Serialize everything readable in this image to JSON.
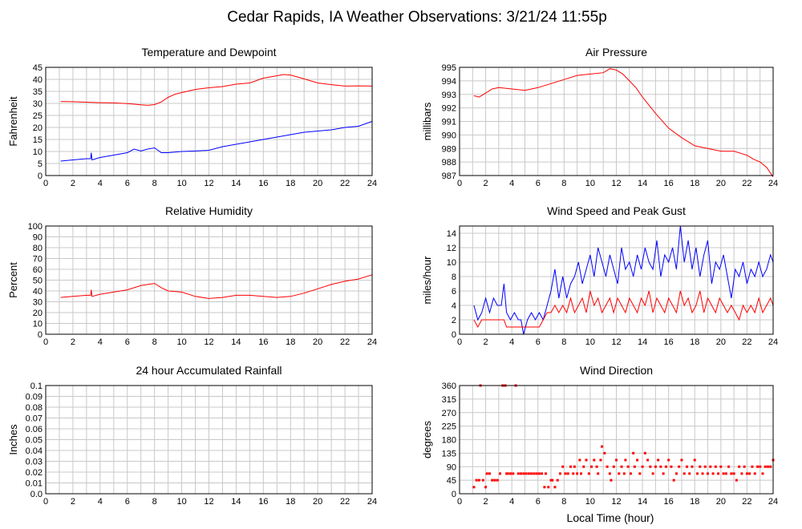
{
  "title": "Cedar Rapids, IA Weather Observations: 3/21/24 11:55p",
  "x_axis_title": "Local Time (hour)",
  "x_ticks": [
    "0",
    "2",
    "4",
    "6",
    "8",
    "10",
    "12",
    "14",
    "16",
    "18",
    "20",
    "22",
    "24"
  ],
  "colors": {
    "primary": "#ff0000",
    "secondary": "#0000ff",
    "grid": "#c8c8c8",
    "frame": "#000000"
  },
  "chart_data": [
    {
      "type": "line",
      "title": "Temperature and Dewpoint",
      "xlabel": "",
      "ylabel": "Fahrenheit",
      "xlim": [
        0,
        24
      ],
      "ylim": [
        0,
        45
      ],
      "y_ticks": [
        "0",
        "5",
        "10",
        "15",
        "20",
        "25",
        "30",
        "35",
        "40",
        "45"
      ],
      "grid": true,
      "series": [
        {
          "color": "#ff0000",
          "x": [
            1.1,
            2,
            3,
            4,
            5,
            6,
            7,
            7.5,
            8,
            8.5,
            9,
            9.5,
            10,
            11,
            12,
            13,
            14,
            15,
            16,
            17,
            17.5,
            18,
            19,
            20,
            21,
            22,
            23,
            24
          ],
          "values": [
            30.8,
            30.7,
            30.5,
            30.3,
            30.2,
            29.9,
            29.4,
            29.2,
            29.5,
            30.6,
            32.5,
            33.8,
            34.5,
            35.8,
            36.5,
            37,
            38,
            38.5,
            40.5,
            41.5,
            42,
            41.8,
            40.2,
            38.5,
            37.8,
            37.2,
            37.3,
            37.2
          ]
        },
        {
          "color": "#0000ff",
          "x": [
            1.1,
            2,
            3,
            3.3,
            3.35,
            3.4,
            4,
            5,
            6,
            6.5,
            7,
            7.5,
            8,
            8.5,
            9,
            10,
            11,
            12,
            13,
            14,
            15,
            16,
            17,
            18,
            19,
            20,
            21,
            22,
            23,
            24
          ],
          "values": [
            6,
            6.5,
            7,
            7,
            9.5,
            6.5,
            7.5,
            8.5,
            9.5,
            11,
            10.2,
            11,
            11.5,
            9.5,
            9.5,
            10,
            10.2,
            10.5,
            12,
            13,
            14,
            15,
            16,
            17,
            18,
            18.5,
            19,
            20,
            20.5,
            22.5
          ]
        }
      ]
    },
    {
      "type": "line",
      "title": "Air Pressure",
      "xlabel": "",
      "ylabel": "millibars",
      "xlim": [
        0,
        24
      ],
      "ylim": [
        987,
        995
      ],
      "y_ticks": [
        "987",
        "988",
        "989",
        "990",
        "991",
        "992",
        "993",
        "994",
        "995"
      ],
      "grid": true,
      "series": [
        {
          "color": "#ff0000",
          "x": [
            1.1,
            1.5,
            2,
            2.5,
            3,
            4,
            5,
            6,
            7,
            8,
            9,
            10,
            11,
            11.5,
            12,
            12.5,
            13,
            13.5,
            14,
            15,
            16,
            17,
            18,
            19,
            20,
            21,
            22,
            22.5,
            23,
            23.5,
            24
          ],
          "values": [
            992.9,
            992.8,
            993.1,
            993.4,
            993.5,
            993.4,
            993.3,
            993.5,
            993.8,
            994.1,
            994.4,
            994.5,
            994.6,
            994.9,
            994.8,
            994.5,
            994,
            993.5,
            992.8,
            991.6,
            990.5,
            989.8,
            989.2,
            989,
            988.8,
            988.8,
            988.5,
            988.2,
            988,
            987.6,
            986.9
          ]
        }
      ]
    },
    {
      "type": "line",
      "title": "Relative Humidity",
      "xlabel": "",
      "ylabel": "Percent",
      "xlim": [
        0,
        24
      ],
      "ylim": [
        0,
        100
      ],
      "y_ticks": [
        "0",
        "10",
        "20",
        "30",
        "40",
        "50",
        "60",
        "70",
        "80",
        "90",
        "100"
      ],
      "grid": true,
      "series": [
        {
          "color": "#ff0000",
          "x": [
            1.1,
            2,
            3,
            3.3,
            3.35,
            3.4,
            4,
            5,
            6,
            7,
            7.5,
            8,
            8.5,
            9,
            10,
            11,
            12,
            13,
            14,
            15,
            16,
            17,
            18,
            19,
            20,
            21,
            22,
            23,
            24
          ],
          "values": [
            34,
            35,
            36,
            36,
            41,
            35,
            37,
            39,
            41,
            45,
            46,
            47,
            43,
            40,
            39,
            35,
            33,
            34,
            36,
            36,
            35,
            34,
            35,
            38,
            42,
            46,
            49,
            51,
            55
          ]
        }
      ]
    },
    {
      "type": "line",
      "title": "Wind Speed and Peak Gust",
      "xlabel": "",
      "ylabel": "miles/hour",
      "xlim": [
        0,
        24
      ],
      "ylim": [
        0,
        15
      ],
      "y_ticks": [
        "0",
        "2",
        "4",
        "6",
        "8",
        "10",
        "12",
        "14"
      ],
      "grid": true,
      "series": [
        {
          "color": "#0000ff",
          "x": [
            1.1,
            1.4,
            1.7,
            2,
            2.3,
            2.6,
            2.9,
            3.2,
            3.4,
            3.6,
            3.9,
            4.2,
            4.5,
            4.7,
            4.9,
            5.2,
            5.5,
            5.8,
            6.1,
            6.4,
            6.7,
            7,
            7.3,
            7.6,
            7.9,
            8.2,
            8.5,
            8.8,
            9.1,
            9.4,
            9.7,
            10,
            10.3,
            10.6,
            10.9,
            11.2,
            11.5,
            11.8,
            12.1,
            12.4,
            12.7,
            13,
            13.3,
            13.6,
            13.9,
            14.2,
            14.5,
            14.8,
            15.1,
            15.4,
            15.7,
            16,
            16.3,
            16.6,
            16.9,
            17.2,
            17.5,
            17.8,
            18.1,
            18.4,
            18.7,
            19,
            19.3,
            19.6,
            19.9,
            20.2,
            20.5,
            20.8,
            21.1,
            21.4,
            21.7,
            22,
            22.3,
            22.6,
            22.9,
            23.2,
            23.5,
            23.8,
            24
          ],
          "values": [
            4,
            2,
            3,
            5,
            3,
            5,
            4,
            4,
            7,
            3,
            2,
            3,
            2,
            2,
            0,
            2,
            3,
            2,
            3,
            2,
            4,
            6,
            9,
            5,
            8,
            5,
            7,
            8,
            10,
            7,
            9,
            11,
            8,
            12,
            10,
            8,
            11,
            9,
            7,
            12,
            9,
            10,
            8,
            11,
            9,
            12,
            10,
            9,
            13,
            8,
            11,
            10,
            12,
            9,
            15,
            10,
            13,
            9,
            12,
            8,
            11,
            13,
            7,
            10,
            9,
            11,
            8,
            5,
            9,
            8,
            10,
            7,
            9,
            8,
            10,
            8,
            9,
            11,
            10
          ]
        },
        {
          "color": "#ff0000",
          "x": [
            1.1,
            1.4,
            1.7,
            2,
            2.3,
            2.6,
            2.9,
            3.2,
            3.4,
            3.6,
            3.9,
            4.2,
            4.5,
            4.7,
            4.9,
            5.2,
            5.5,
            5.8,
            6.1,
            6.4,
            6.7,
            7,
            7.3,
            7.6,
            7.9,
            8.2,
            8.5,
            8.8,
            9.1,
            9.4,
            9.7,
            10,
            10.3,
            10.6,
            10.9,
            11.2,
            11.5,
            11.8,
            12.1,
            12.4,
            12.7,
            13,
            13.3,
            13.6,
            13.9,
            14.2,
            14.5,
            14.8,
            15.1,
            15.4,
            15.7,
            16,
            16.3,
            16.6,
            16.9,
            17.2,
            17.5,
            17.8,
            18.1,
            18.4,
            18.7,
            19,
            19.3,
            19.6,
            19.9,
            20.2,
            20.5,
            20.8,
            21.1,
            21.4,
            21.7,
            22,
            22.3,
            22.6,
            22.9,
            23.2,
            23.5,
            23.8,
            24
          ],
          "values": [
            2,
            1,
            2,
            2,
            2,
            2,
            2,
            2,
            2,
            1,
            1,
            1,
            1,
            1,
            1,
            1,
            1,
            1,
            1,
            2,
            3,
            3,
            4,
            3,
            4,
            3,
            5,
            3,
            4,
            5,
            3,
            6,
            4,
            5,
            3,
            4,
            5,
            3,
            5,
            4,
            3,
            5,
            4,
            3,
            5,
            4,
            6,
            3,
            5,
            4,
            3,
            5,
            4,
            3,
            6,
            4,
            5,
            3,
            4,
            6,
            3,
            5,
            4,
            3,
            5,
            4,
            3,
            4,
            3,
            2,
            4,
            3,
            4,
            3,
            5,
            3,
            4,
            5,
            4
          ]
        }
      ]
    },
    {
      "type": "line",
      "title": "24 hour Accumulated Rainfall",
      "xlabel": "",
      "ylabel": "Inches",
      "xlim": [
        0,
        24
      ],
      "ylim": [
        0,
        0.1
      ],
      "y_ticks": [
        "0.0",
        "0.01",
        "0.02",
        "0.03",
        "0.04",
        "0.05",
        "0.06",
        "0.07",
        "0.08",
        "0.09",
        "0.1"
      ],
      "grid": true,
      "series": [
        {
          "color": "#ff0000",
          "x": [
            0,
            24
          ],
          "values": [
            0,
            0
          ]
        }
      ]
    },
    {
      "type": "scatter",
      "title": "Wind Direction",
      "xlabel": "Local Time (hour)",
      "ylabel": "degrees",
      "xlim": [
        0,
        24
      ],
      "ylim": [
        0,
        360
      ],
      "y_ticks": [
        "0",
        "45",
        "90",
        "135",
        "180",
        "225",
        "270",
        "315",
        "360"
      ],
      "grid": true,
      "series": [
        {
          "color": "#ff0000",
          "x": [
            1.1,
            1.3,
            1.5,
            1.6,
            1.8,
            2,
            2.1,
            2.3,
            2.5,
            2.7,
            2.9,
            3.1,
            3.3,
            3.5,
            3.6,
            3.7,
            3.9,
            4.1,
            4.3,
            4.5,
            4.7,
            4.9,
            5.1,
            5.3,
            5.5,
            5.7,
            5.9,
            6.1,
            6.3,
            6.5,
            6.6,
            6.8,
            7,
            7.1,
            7.3,
            7.5,
            7.7,
            7.9,
            8.1,
            8.3,
            8.5,
            8.7,
            8.8,
            9,
            9.2,
            9.3,
            9.5,
            9.7,
            9.9,
            10.1,
            10.3,
            10.5,
            10.6,
            10.8,
            10.9,
            11.1,
            11.3,
            11.5,
            11.6,
            11.8,
            12,
            12.2,
            12.4,
            12.6,
            12.7,
            12.9,
            13.1,
            13.3,
            13.4,
            13.6,
            13.8,
            14,
            14.2,
            14.4,
            14.6,
            14.8,
            15,
            15.2,
            15.4,
            15.6,
            15.8,
            16,
            16.2,
            16.4,
            16.6,
            16.8,
            17,
            17.2,
            17.4,
            17.6,
            17.8,
            18,
            18.2,
            18.4,
            18.6,
            18.8,
            19,
            19.2,
            19.4,
            19.6,
            19.8,
            20,
            20.2,
            20.4,
            20.6,
            20.8,
            21,
            21.2,
            21.4,
            21.6,
            21.8,
            22,
            22.2,
            22.4,
            22.6,
            22.8,
            23,
            23.2,
            23.4,
            23.6,
            23.8,
            24
          ],
          "values": [
            22,
            45,
            45,
            360,
            45,
            22,
            67,
            67,
            45,
            45,
            45,
            67,
            360,
            360,
            67,
            67,
            67,
            67,
            360,
            67,
            67,
            67,
            67,
            67,
            67,
            67,
            67,
            67,
            67,
            22,
            67,
            22,
            45,
            45,
            22,
            45,
            67,
            90,
            67,
            67,
            90,
            67,
            90,
            67,
            112,
            67,
            90,
            112,
            67,
            90,
            112,
            90,
            67,
            112,
            157,
            135,
            90,
            67,
            45,
            90,
            112,
            67,
            90,
            67,
            112,
            90,
            67,
            135,
            90,
            112,
            67,
            90,
            135,
            112,
            90,
            67,
            90,
            112,
            90,
            67,
            90,
            112,
            90,
            45,
            67,
            90,
            112,
            67,
            90,
            67,
            90,
            112,
            67,
            90,
            67,
            90,
            67,
            90,
            67,
            90,
            67,
            90,
            67,
            67,
            90,
            67,
            67,
            45,
            90,
            67,
            90,
            67,
            67,
            90,
            67,
            90,
            90,
            67,
            90,
            90,
            90,
            112
          ]
        }
      ]
    }
  ]
}
